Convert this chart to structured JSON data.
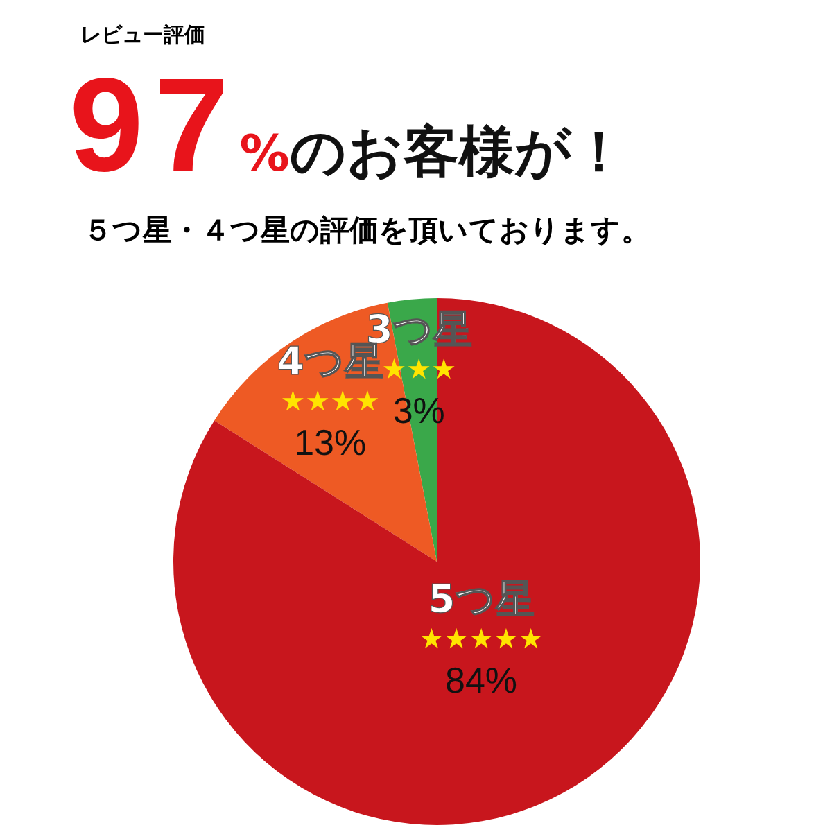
{
  "chart_data": {
    "type": "pie",
    "title": "97%のお客様が！",
    "subtitle": "５つ星・４つ星の評価を頂いております。",
    "annotations": [
      "レビュー評価",
      "★★★",
      "★★★★",
      "★★★★★"
    ],
    "categories": [
      "3つ星",
      "4つ星",
      "5つ星"
    ],
    "values": [
      3,
      13,
      84
    ],
    "value_labels": [
      "3%",
      "13%",
      "84%"
    ],
    "colors": [
      "#3aa84a",
      "#ee5a24",
      "#c8161d"
    ],
    "legend": false
  }
}
